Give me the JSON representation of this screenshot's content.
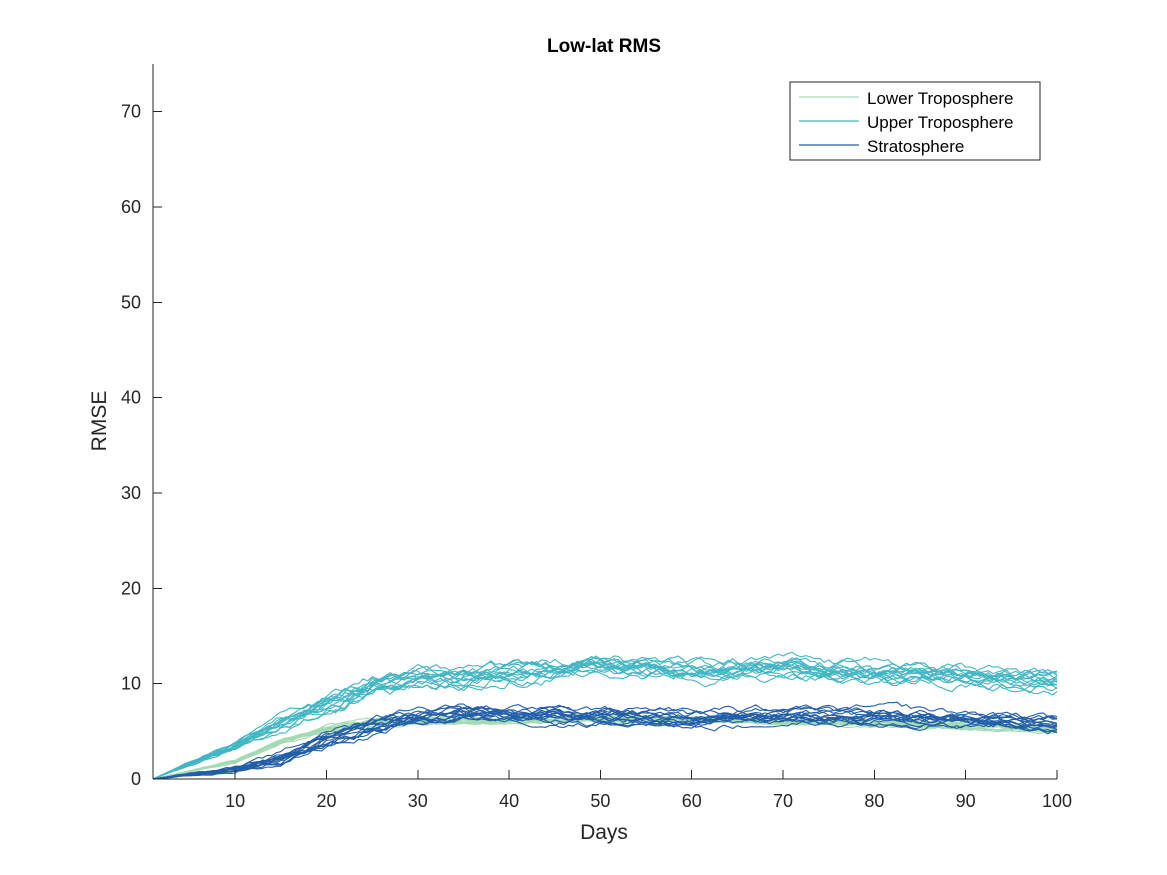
{
  "chart_data": {
    "type": "line",
    "title": "Low-lat RMS",
    "xlabel": "Days",
    "ylabel": "RMSE",
    "xlim": [
      1,
      100
    ],
    "ylim": [
      0,
      75
    ],
    "xticks": [
      10,
      20,
      30,
      40,
      50,
      60,
      70,
      80,
      90,
      100
    ],
    "yticks": [
      0,
      10,
      20,
      30,
      40,
      50,
      60,
      70
    ],
    "grid": false,
    "legend_position": "top-right",
    "series": [
      {
        "name": "Lower Troposphere",
        "color": "#a3dbb3",
        "ensemble_members": 15,
        "x": [
          1,
          10,
          15,
          20,
          25,
          30,
          40,
          50,
          60,
          70,
          80,
          90,
          100
        ],
        "y": [
          0,
          1.8,
          3.8,
          5.2,
          5.8,
          6.0,
          6.1,
          6.2,
          6.1,
          5.9,
          5.8,
          5.5,
          5.1
        ]
      },
      {
        "name": "Upper Troposphere",
        "color": "#41b6c4",
        "ensemble_members": 15,
        "x": [
          1,
          5,
          10,
          15,
          20,
          25,
          30,
          35,
          40,
          50,
          60,
          70,
          80,
          90,
          100
        ],
        "y": [
          0,
          1.6,
          3.4,
          5.8,
          7.8,
          9.6,
          10.3,
          10.5,
          11.2,
          12.0,
          11.3,
          11.6,
          11.0,
          10.8,
          10.2
        ]
      },
      {
        "name": "Stratosphere",
        "color": "#225ea8",
        "ensemble_members": 15,
        "x": [
          1,
          5,
          10,
          15,
          20,
          25,
          30,
          35,
          40,
          50,
          60,
          70,
          80,
          90,
          100
        ],
        "y": [
          0,
          0.5,
          1.0,
          2.2,
          4.2,
          5.6,
          6.5,
          7.0,
          6.8,
          6.8,
          6.4,
          6.6,
          6.7,
          6.3,
          5.9
        ]
      }
    ]
  }
}
